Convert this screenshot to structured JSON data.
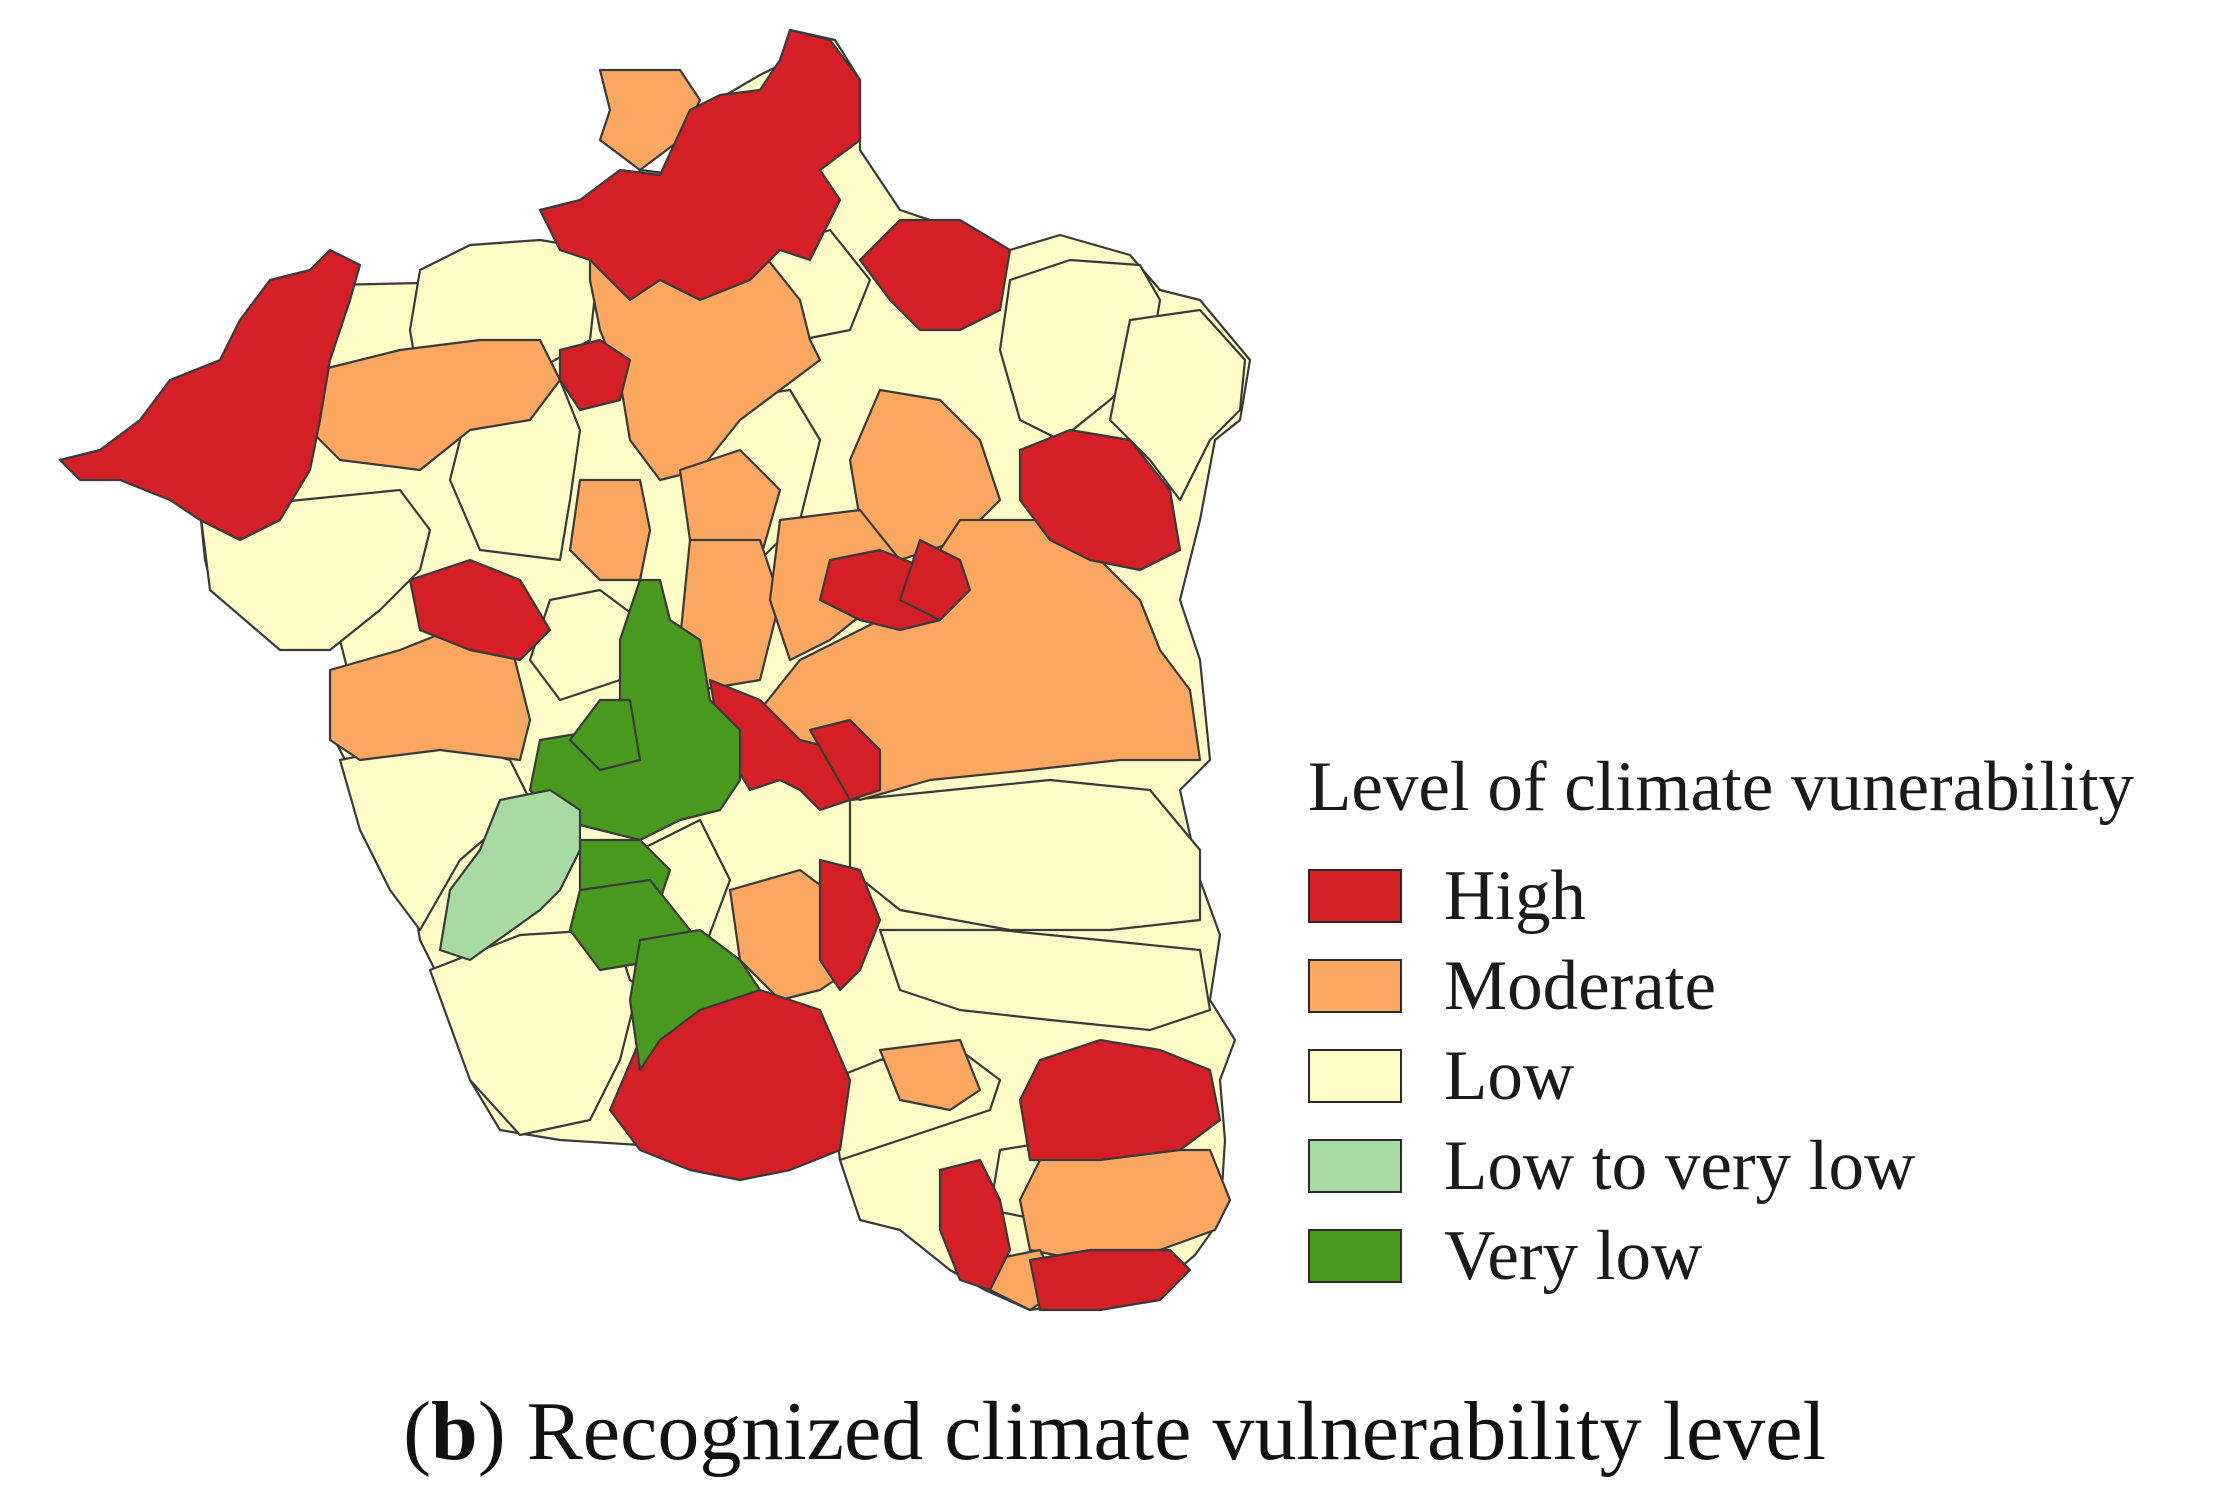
{
  "legend": {
    "title": "Level of climate vunerability",
    "items": [
      {
        "key": "high",
        "label": "High",
        "color": "#d41f26"
      },
      {
        "key": "moderate",
        "label": "Moderate",
        "color": "#fba75f"
      },
      {
        "key": "low",
        "label": "Low",
        "color": "#fefcc6"
      },
      {
        "key": "low_to_very_low",
        "label": "Low to very low",
        "color": "#a7dba1"
      },
      {
        "key": "very_low",
        "label": "Very low",
        "color": "#48991e"
      }
    ]
  },
  "caption": {
    "open_paren": "(",
    "letter": "b",
    "close_paren": ")",
    "text": " Recognized climate vulnerability level"
  },
  "regions": [
    {
      "level": "low"
    },
    {
      "level": "low"
    },
    {
      "level": "low"
    },
    {
      "level": "low"
    },
    {
      "level": "low"
    },
    {
      "level": "low"
    },
    {
      "level": "low"
    },
    {
      "level": "low"
    },
    {
      "level": "low"
    },
    {
      "level": "low"
    },
    {
      "level": "low"
    },
    {
      "level": "low"
    },
    {
      "level": "low"
    },
    {
      "level": "low"
    },
    {
      "level": "low"
    },
    {
      "level": "low"
    },
    {
      "level": "moderate"
    },
    {
      "level": "moderate"
    },
    {
      "level": "moderate"
    },
    {
      "level": "moderate"
    },
    {
      "level": "moderate"
    },
    {
      "level": "moderate"
    },
    {
      "level": "moderate"
    },
    {
      "level": "moderate"
    },
    {
      "level": "moderate"
    },
    {
      "level": "moderate"
    },
    {
      "level": "moderate"
    },
    {
      "level": "moderate"
    },
    {
      "level": "high"
    },
    {
      "level": "high"
    },
    {
      "level": "high"
    },
    {
      "level": "high"
    },
    {
      "level": "high"
    },
    {
      "level": "high"
    },
    {
      "level": "high"
    },
    {
      "level": "high"
    },
    {
      "level": "high"
    },
    {
      "level": "high"
    },
    {
      "level": "high"
    },
    {
      "level": "high"
    },
    {
      "level": "high"
    },
    {
      "level": "high"
    },
    {
      "level": "high"
    },
    {
      "level": "very_low"
    },
    {
      "level": "very_low"
    },
    {
      "level": "very_low"
    },
    {
      "level": "very_low"
    },
    {
      "level": "very_low"
    },
    {
      "level": "low_to_very_low"
    }
  ]
}
